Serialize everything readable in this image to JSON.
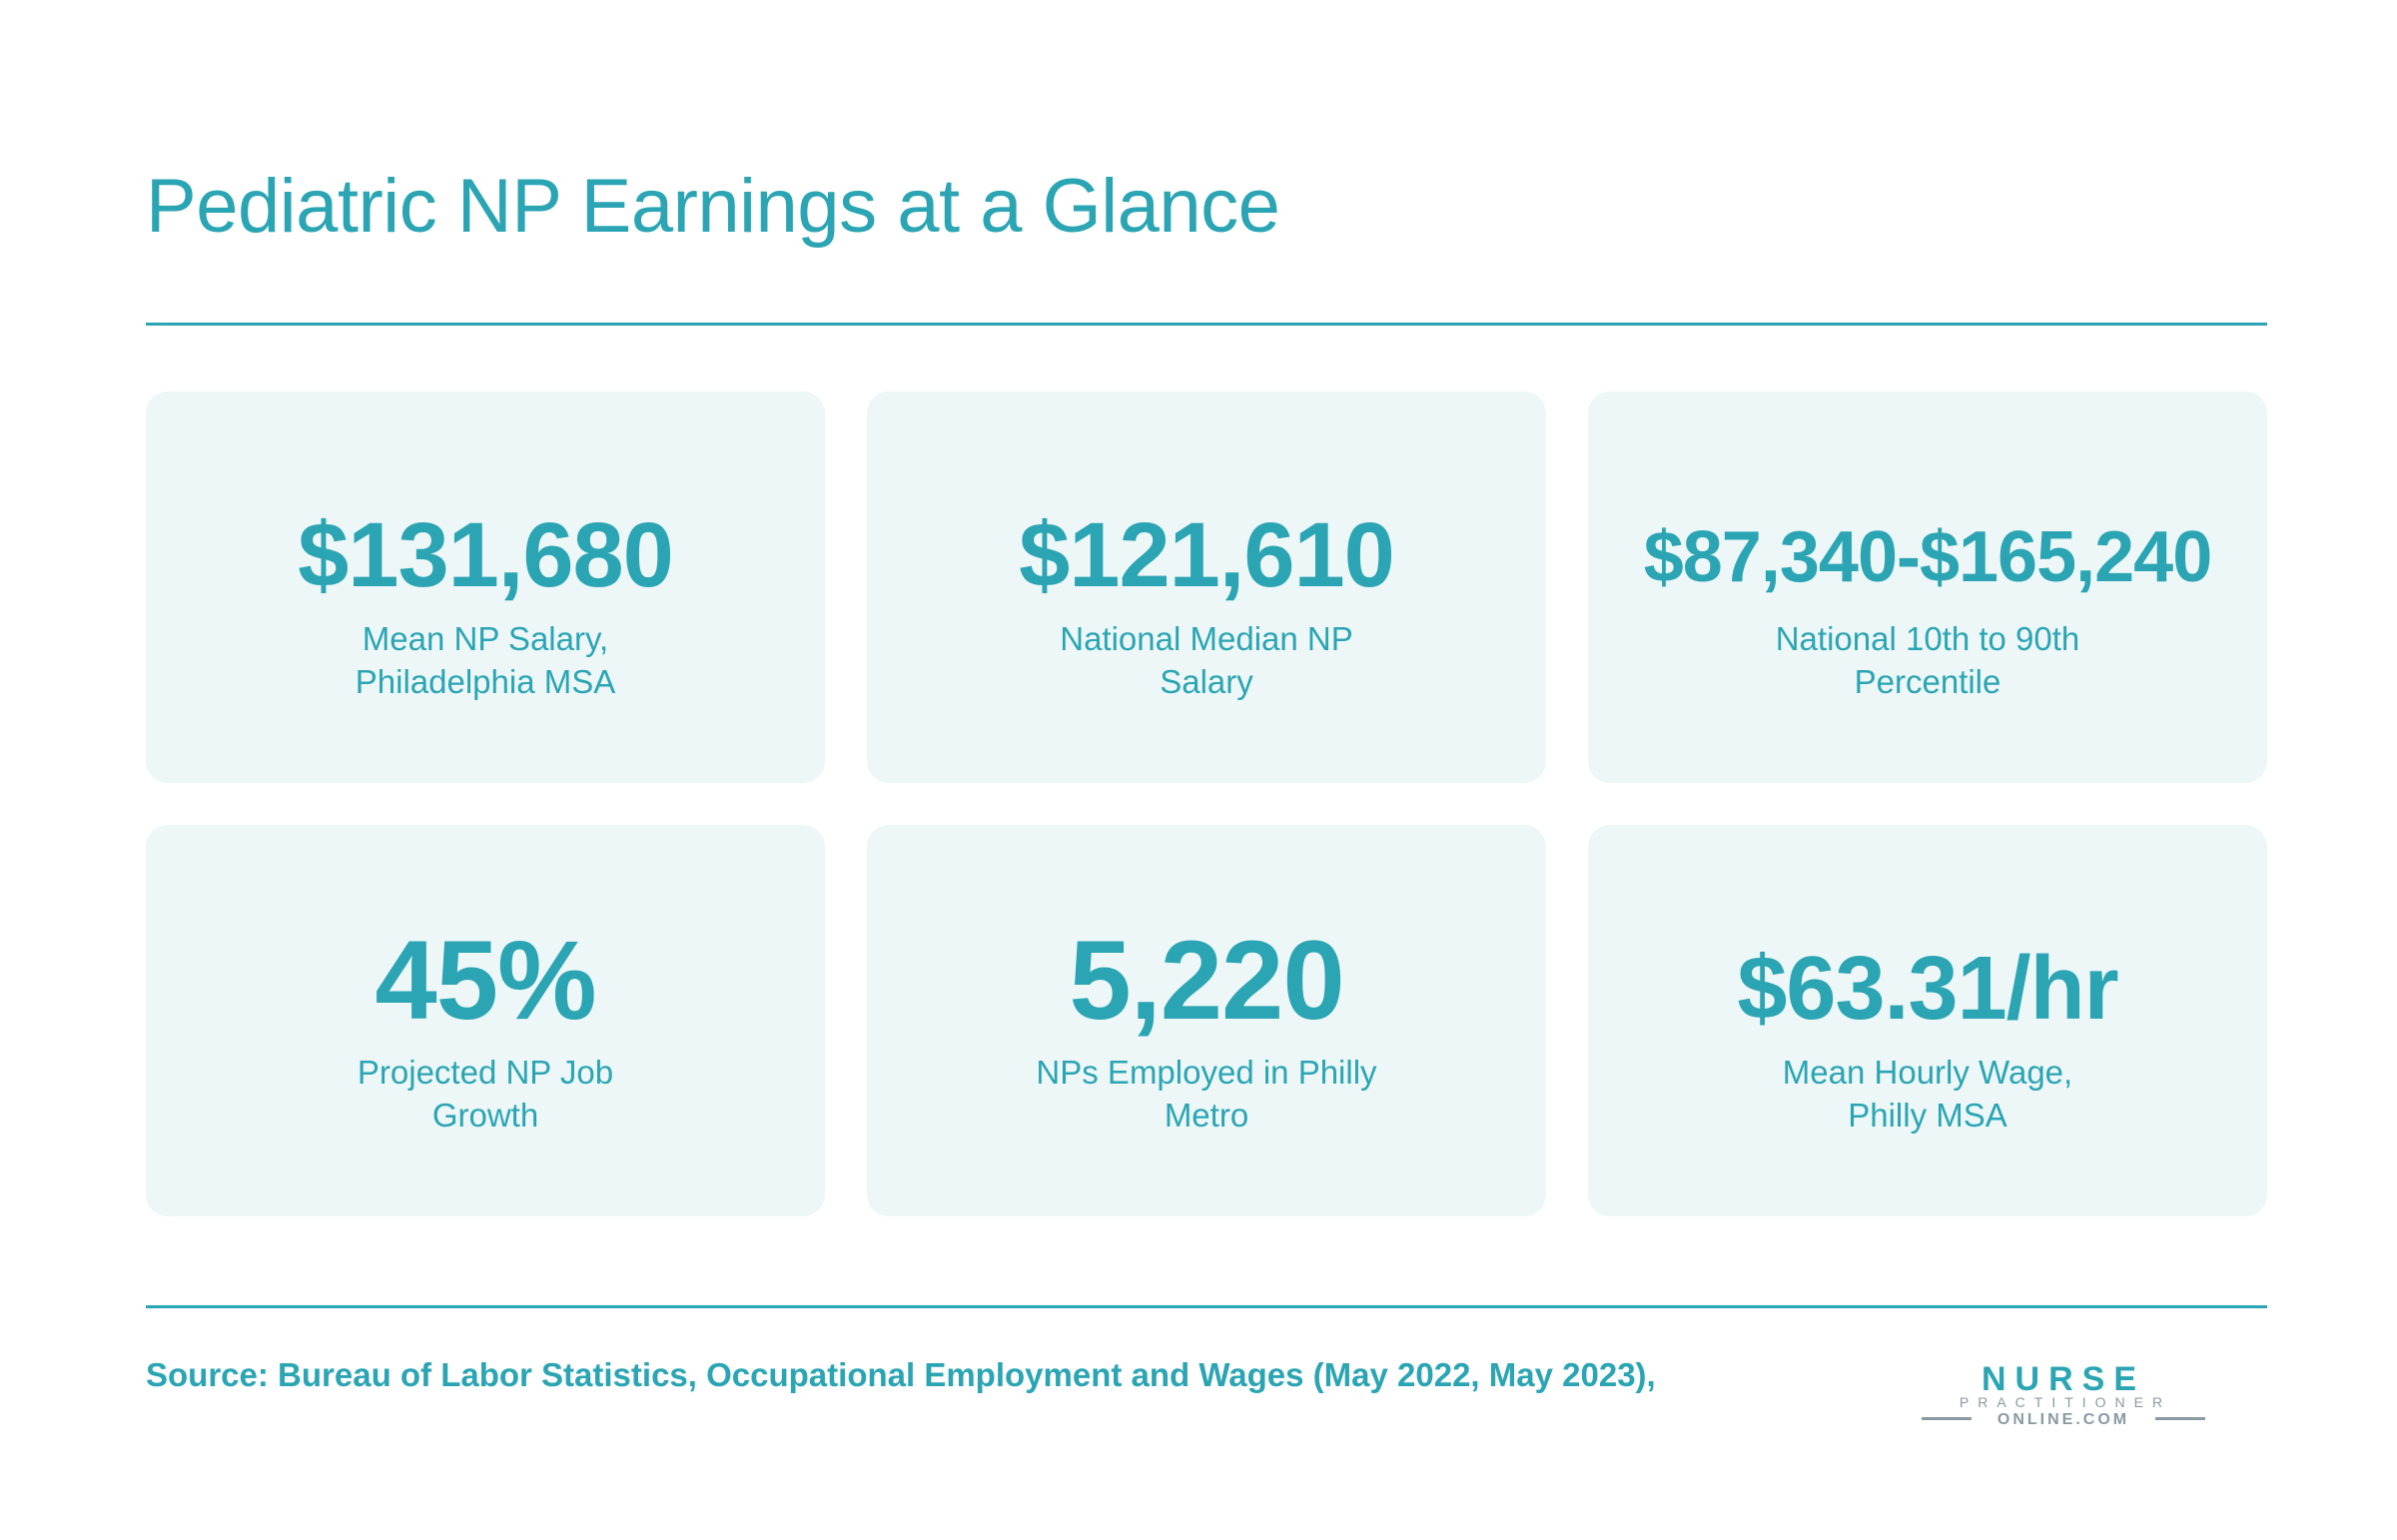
{
  "title": "Pediatric NP Earnings at a Glance",
  "stats": [
    {
      "value": "$131,680",
      "label": "Mean NP Salary, Philadelphia MSA"
    },
    {
      "value": "$121,610",
      "label": "National Median NP Salary"
    },
    {
      "value": "$87,340-$165,240",
      "label": "National 10th to 90th Percentile"
    },
    {
      "value": "45%",
      "label": "Projected NP Job Growth"
    },
    {
      "value": "5,220",
      "label": "NPs Employed in Philly Metro"
    },
    {
      "value": "$63.31/hr",
      "label": "Mean Hourly Wage, Philly MSA"
    }
  ],
  "source": "Source: Bureau of Labor Statistics, Occupational Employment and Wages (May 2022, May 2023),",
  "logo": {
    "line1": "NURSE",
    "line2": "PRACTITIONER",
    "line3": "ONLINE.COM"
  },
  "colors": {
    "accent": "#2ba5b3",
    "card_bg": "#edf7f8",
    "logo_gray": "#8a9aa3"
  }
}
